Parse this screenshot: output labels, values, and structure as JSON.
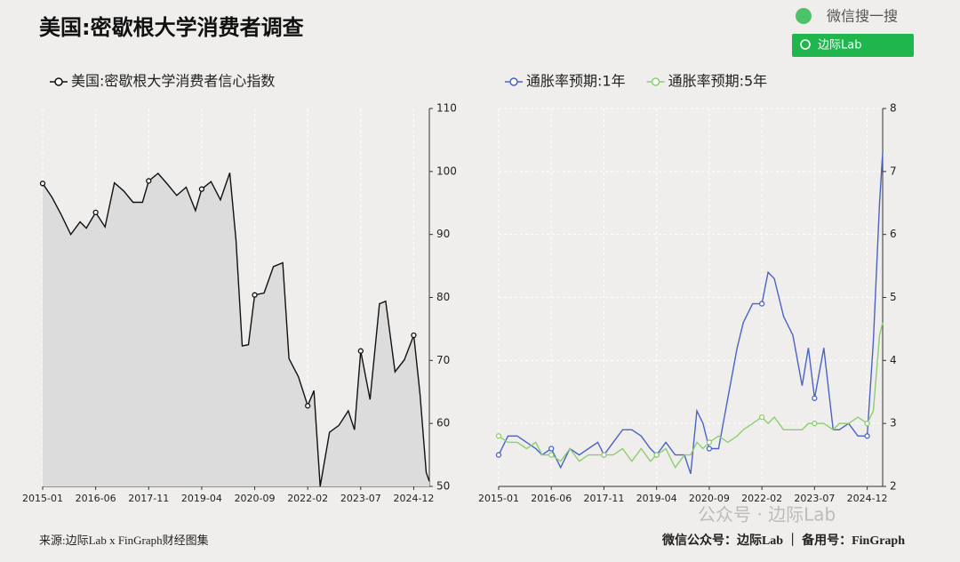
{
  "header": {
    "title": "美国:密歇根大学消费者调查",
    "search": "微信搜一搜",
    "button": "边际Lab"
  },
  "footer": {
    "source": "来源:边际Lab x FinGraph财经图集",
    "watermark": "公众号 · 边际Lab",
    "credit": "微信公众号：边际Lab ｜ 备用号：FinGraph"
  },
  "chart_data": [
    {
      "type": "area",
      "grid": "x",
      "legend": "top-left",
      "fill": "#dcdcdc",
      "x": [
        "2015-01",
        "2015-04",
        "2015-07",
        "2015-10",
        "2016-01",
        "2016-03",
        "2016-06",
        "2016-09",
        "2016-12",
        "2017-03",
        "2017-06",
        "2017-09",
        "2017-11",
        "2018-02",
        "2018-05",
        "2018-08",
        "2018-11",
        "2019-02",
        "2019-04",
        "2019-07",
        "2019-10",
        "2020-01",
        "2020-03",
        "2020-05",
        "2020-07",
        "2020-09",
        "2020-12",
        "2021-03",
        "2021-06",
        "2021-08",
        "2021-11",
        "2022-02",
        "2022-04",
        "2022-06",
        "2022-09",
        "2022-12",
        "2023-03",
        "2023-05",
        "2023-07",
        "2023-10",
        "2024-01",
        "2024-03",
        "2024-06",
        "2024-09",
        "2024-12",
        "2025-02",
        "2025-04",
        "2025-05"
      ],
      "xlim": [
        "2015-01",
        "2025-05"
      ],
      "xticks": [
        "2015-01",
        "2016-06",
        "2017-11",
        "2019-04",
        "2020-09",
        "2022-02",
        "2023-07",
        "2024-12"
      ],
      "ylim": [
        50,
        110
      ],
      "yticks": [
        50,
        60,
        70,
        80,
        90,
        100,
        110
      ],
      "series": [
        {
          "name": "美国:密歇根大学消费者信心指数",
          "color": "#111111",
          "values": [
            98.1,
            95.9,
            93.1,
            90.0,
            92.0,
            91.0,
            93.5,
            91.2,
            98.2,
            96.9,
            95.1,
            95.1,
            98.5,
            99.7,
            98.0,
            96.2,
            97.5,
            93.8,
            97.2,
            98.4,
            95.5,
            99.8,
            89.1,
            72.3,
            72.5,
            80.4,
            80.7,
            84.9,
            85.5,
            70.3,
            67.4,
            62.8,
            65.2,
            50.0,
            58.6,
            59.7,
            62.0,
            59.0,
            71.5,
            63.8,
            79.0,
            79.4,
            68.2,
            70.1,
            74.0,
            64.7,
            52.2,
            50.8
          ]
        }
      ]
    },
    {
      "type": "line",
      "grid": "both",
      "legend": "top-left",
      "x": [
        "2015-01",
        "2015-04",
        "2015-07",
        "2015-10",
        "2016-01",
        "2016-03",
        "2016-06",
        "2016-09",
        "2016-12",
        "2017-03",
        "2017-06",
        "2017-09",
        "2017-11",
        "2018-02",
        "2018-05",
        "2018-08",
        "2018-11",
        "2019-02",
        "2019-04",
        "2019-07",
        "2019-10",
        "2020-01",
        "2020-03",
        "2020-05",
        "2020-07",
        "2020-09",
        "2020-12",
        "2021-03",
        "2021-06",
        "2021-08",
        "2021-11",
        "2022-02",
        "2022-04",
        "2022-06",
        "2022-09",
        "2022-12",
        "2023-03",
        "2023-05",
        "2023-07",
        "2023-10",
        "2024-01",
        "2024-03",
        "2024-06",
        "2024-09",
        "2024-12",
        "2025-02",
        "2025-04",
        "2025-05"
      ],
      "xlim": [
        "2015-01",
        "2025-05"
      ],
      "xticks": [
        "2015-01",
        "2016-06",
        "2017-11",
        "2019-04",
        "2020-09",
        "2022-02",
        "2023-07",
        "2024-12"
      ],
      "ylim": [
        2,
        8
      ],
      "yticks": [
        2,
        3,
        4,
        5,
        6,
        7,
        8
      ],
      "series": [
        {
          "name": "通胀率预期:1年",
          "color": "#4a63c4",
          "values": [
            2.5,
            2.8,
            2.8,
            2.7,
            2.6,
            2.5,
            2.6,
            2.3,
            2.6,
            2.5,
            2.6,
            2.7,
            2.5,
            2.7,
            2.9,
            2.9,
            2.8,
            2.6,
            2.5,
            2.7,
            2.5,
            2.5,
            2.2,
            3.2,
            3.0,
            2.6,
            2.6,
            3.4,
            4.2,
            4.6,
            4.9,
            4.9,
            5.4,
            5.3,
            4.7,
            4.4,
            3.6,
            4.2,
            3.4,
            4.2,
            2.9,
            2.9,
            3.0,
            2.8,
            2.8,
            4.3,
            6.5,
            7.3
          ]
        },
        {
          "name": "通胀率预期:5年",
          "color": "#8ccf6e",
          "values": [
            2.8,
            2.7,
            2.7,
            2.6,
            2.7,
            2.5,
            2.5,
            2.4,
            2.6,
            2.4,
            2.5,
            2.5,
            2.5,
            2.5,
            2.6,
            2.4,
            2.6,
            2.4,
            2.5,
            2.6,
            2.3,
            2.5,
            2.5,
            2.7,
            2.6,
            2.7,
            2.8,
            2.7,
            2.8,
            2.9,
            3.0,
            3.1,
            3.0,
            3.1,
            2.9,
            2.9,
            2.9,
            3.0,
            3.0,
            3.0,
            2.9,
            3.0,
            3.0,
            3.1,
            3.0,
            3.2,
            4.4,
            4.6
          ]
        }
      ]
    }
  ]
}
